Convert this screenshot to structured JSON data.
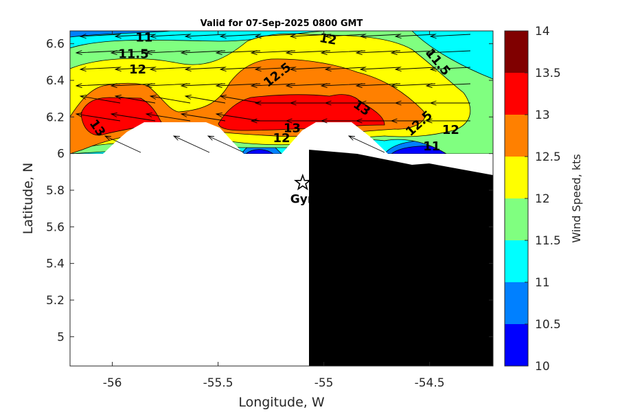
{
  "chart_data": {
    "type": "contour",
    "title": "Valid for 07-Sep-2025 0800 GMT",
    "xlabel": "Longitude, W",
    "ylabel": "Latitude, N",
    "xlim": [
      -56.2,
      -54.2
    ],
    "ylim": [
      4.84,
      6.67
    ],
    "xticks": [
      -56,
      -55.5,
      -55,
      -54.5
    ],
    "xtick_labels": [
      "-56",
      "-55.5",
      "-55",
      "-54.5"
    ],
    "yticks": [
      5,
      5.2,
      5.4,
      5.6,
      5.8,
      6,
      6.2,
      6.4,
      6.6
    ],
    "ytick_labels": [
      "5",
      "5.2",
      "5.4",
      "5.6",
      "5.8",
      "6",
      "6.2",
      "6.4",
      "6.6"
    ],
    "colorbar": {
      "label": "Wind Speed, kts",
      "min": 10,
      "max": 14,
      "ticks": [
        10,
        10.5,
        11,
        11.5,
        12,
        12.5,
        13,
        13.5,
        14
      ],
      "tick_labels": [
        "10",
        "10.5",
        "11",
        "11.5",
        "12",
        "12.5",
        "13",
        "13.5",
        "14"
      ],
      "colors": [
        "#0000ff",
        "#0080ff",
        "#00ffff",
        "#80ff80",
        "#ffff00",
        "#ff8000",
        "#ff0000",
        "#800000"
      ]
    },
    "contour_labels": [
      {
        "text": "11",
        "lon": -55.85,
        "lat": 6.635,
        "angle": 0
      },
      {
        "text": "11.5",
        "lon": -55.9,
        "lat": 6.545,
        "angle": 0
      },
      {
        "text": "12",
        "lon": -55.88,
        "lat": 6.46,
        "angle": 0
      },
      {
        "text": "12.5",
        "lon": -55.22,
        "lat": 6.43,
        "angle": -38
      },
      {
        "text": "12",
        "lon": -54.98,
        "lat": 6.625,
        "angle": 10
      },
      {
        "text": "11.5",
        "lon": -54.46,
        "lat": 6.5,
        "angle": 50
      },
      {
        "text": "13",
        "lon": -56.07,
        "lat": 6.14,
        "angle": 55
      },
      {
        "text": "13",
        "lon": -55.15,
        "lat": 6.14,
        "angle": 0
      },
      {
        "text": "12",
        "lon": -55.2,
        "lat": 6.085,
        "angle": 0
      },
      {
        "text": "13",
        "lon": -54.82,
        "lat": 6.25,
        "angle": 35
      },
      {
        "text": "12.5",
        "lon": -54.55,
        "lat": 6.165,
        "angle": -42
      },
      {
        "text": "12",
        "lon": -54.4,
        "lat": 6.13,
        "angle": 0
      },
      {
        "text": "11",
        "lon": -54.49,
        "lat": 6.04,
        "angle": 0
      }
    ],
    "marker": {
      "type": "star",
      "label": "Gyr",
      "lon": -55.1,
      "lat": 5.84
    }
  }
}
